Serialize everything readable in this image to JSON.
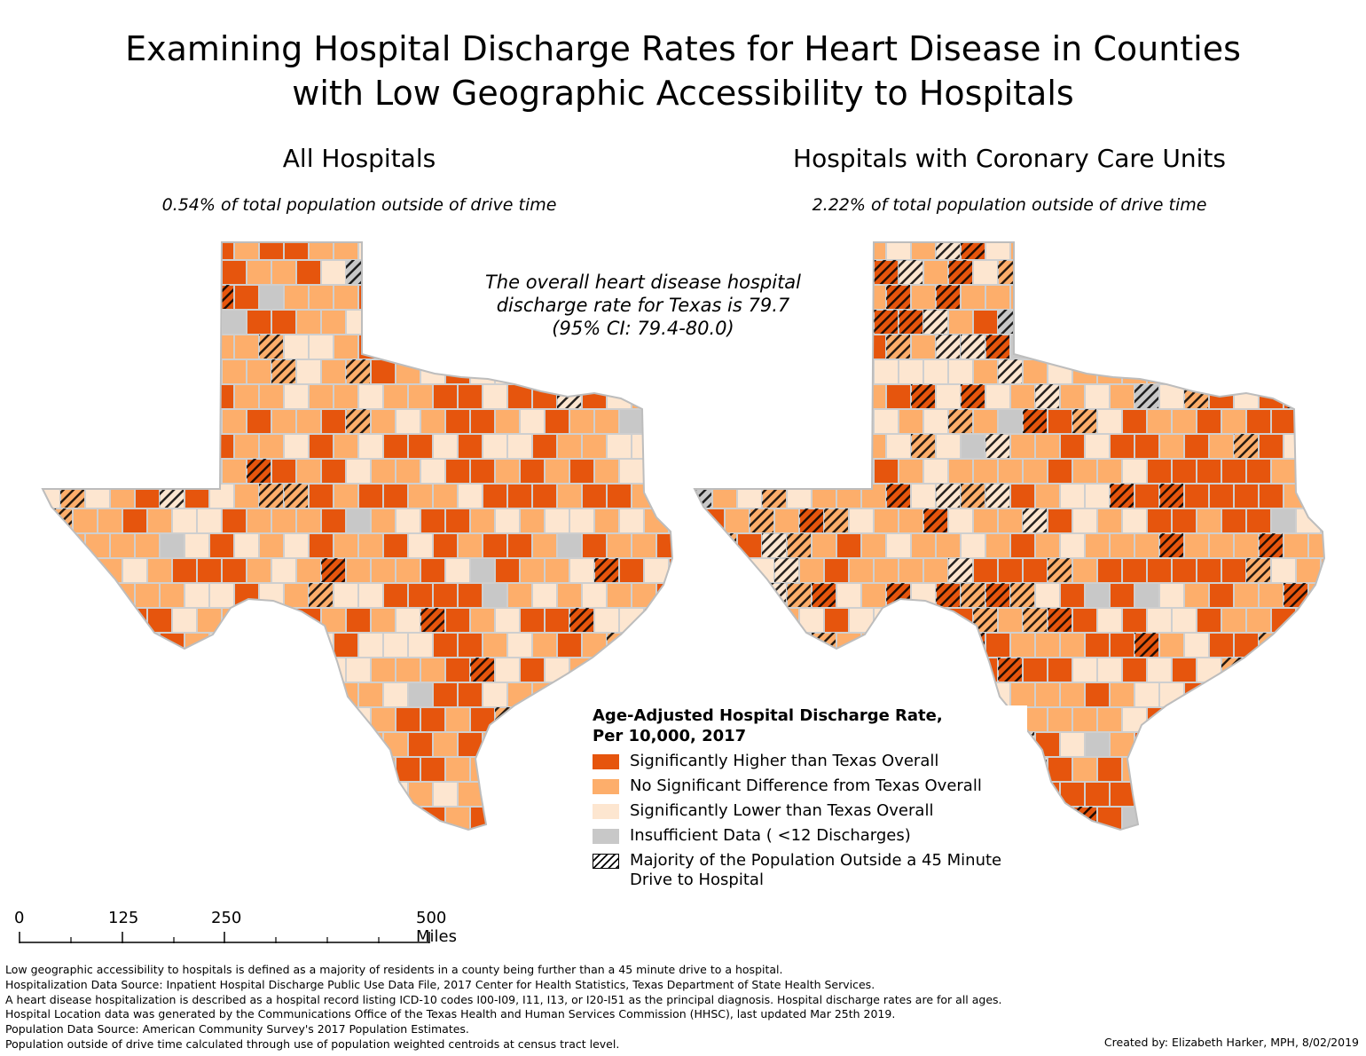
{
  "title_line1": "Examining Hospital Discharge Rates for Heart Disease in Counties",
  "title_line2": "with Low Geographic Accessibility to Hospitals",
  "maps": [
    {
      "title": "All Hospitals",
      "subtitle": "0.54% of total population outside of drive time"
    },
    {
      "title": "Hospitals with Coronary Care Units",
      "subtitle": "2.22% of total population outside of drive time"
    }
  ],
  "overall_note": {
    "line1": "The overall heart disease hospital",
    "line2": "discharge rate for Texas is 79.7",
    "line3": "(95% CI: 79.4-80.0)"
  },
  "legend": {
    "title_line1": "Age-Adjusted Hospital Discharge Rate,",
    "title_line2": "Per 10,000, 2017",
    "items": [
      {
        "label": "Significantly Higher than Texas Overall",
        "color": "#e6550d"
      },
      {
        "label": "No Significant Difference from Texas Overall",
        "color": "#fdae6b"
      },
      {
        "label": "Significantly Lower than Texas Overall",
        "color": "#fde6d0"
      },
      {
        "label": "Insufficient Data ( <12 Discharges)",
        "color": "#c8c8c8"
      },
      {
        "label": "Majority of the Population Outside a 45 Minute Drive to Hospital",
        "color": "hatch"
      }
    ]
  },
  "scale": {
    "labels": [
      "0",
      "125",
      "250",
      "500 Miles"
    ]
  },
  "footnotes": [
    "Low geographic accessibility to hospitals is defined as a majority of residents in a county being further than a 45 minute drive to a hospital.",
    "Hospitalization Data Source: Inpatient Hospital Discharge Public Use Data File, 2017 Center for Health Statistics, Texas Department of State Health Services.",
    "A heart disease hospitalization is described as a hospital record listing ICD-10 codes I00-I09, I11, I13, or I20-I51 as the principal diagnosis. Hospital discharge rates are for all ages.",
    "Hospital Location data was generated by the Communications Office of the Texas Health and Human Services Commission (HHSC), last updated Mar 25th 2019.",
    "Population Data Source: American Community Survey's 2017 Population Estimates.",
    "Population outside of drive time calculated through use of population weighted centroids at census tract level."
  ],
  "credit": "Created by: Elizabeth Harker, MPH, 8/02/2019"
}
